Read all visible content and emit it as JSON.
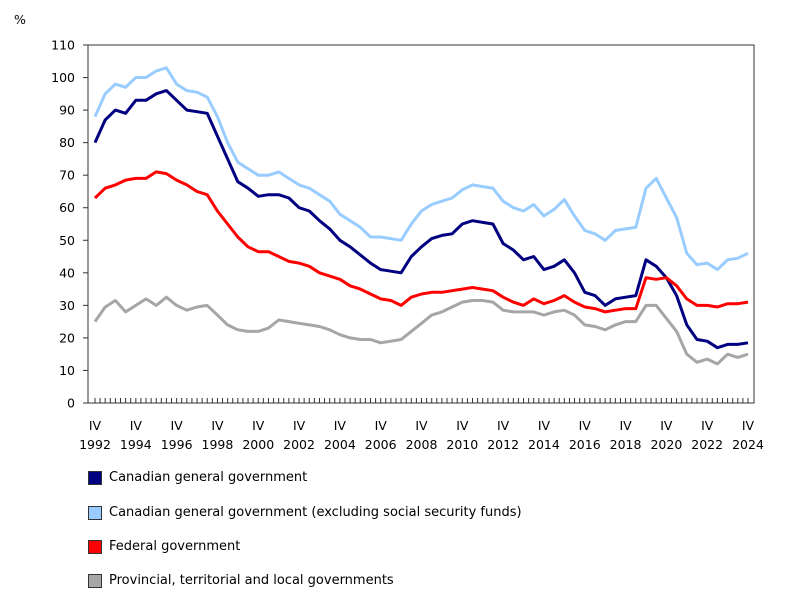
{
  "chart_data": {
    "type": "line",
    "ylabel": "%",
    "ylim": [
      0,
      110
    ],
    "yticks": [
      0,
      10,
      20,
      30,
      40,
      50,
      60,
      70,
      80,
      90,
      100,
      110
    ],
    "x_tick_quarter": "IV",
    "x_tick_years": [
      "1992",
      "1994",
      "1996",
      "1998",
      "2000",
      "2002",
      "2004",
      "2006",
      "2008",
      "2010",
      "2012",
      "2014",
      "2016",
      "2018",
      "2020",
      "2022",
      "2024"
    ],
    "grid": false,
    "legend_position": "bottom",
    "x": [
      "1992Q4",
      "1993Q2",
      "1993Q4",
      "1994Q2",
      "1994Q4",
      "1995Q2",
      "1995Q4",
      "1996Q2",
      "1996Q4",
      "1997Q2",
      "1997Q4",
      "1998Q2",
      "1998Q4",
      "1999Q2",
      "1999Q4",
      "2000Q2",
      "2000Q4",
      "2001Q2",
      "2001Q4",
      "2002Q2",
      "2002Q4",
      "2003Q2",
      "2003Q4",
      "2004Q2",
      "2004Q4",
      "2005Q2",
      "2005Q4",
      "2006Q2",
      "2006Q4",
      "2007Q2",
      "2007Q4",
      "2008Q2",
      "2008Q4",
      "2009Q2",
      "2009Q4",
      "2010Q2",
      "2010Q4",
      "2011Q2",
      "2011Q4",
      "2012Q2",
      "2012Q4",
      "2013Q2",
      "2013Q4",
      "2014Q2",
      "2014Q4",
      "2015Q2",
      "2015Q4",
      "2016Q2",
      "2016Q4",
      "2017Q2",
      "2017Q4",
      "2018Q2",
      "2018Q4",
      "2019Q2",
      "2019Q4",
      "2020Q2",
      "2020Q4",
      "2021Q2",
      "2021Q4",
      "2022Q2",
      "2022Q4",
      "2023Q2",
      "2023Q4",
      "2024Q2",
      "2024Q4"
    ],
    "series": [
      {
        "name": "Canadian general government",
        "color": "#000080",
        "values": [
          80,
          87,
          90,
          89,
          93,
          93,
          95,
          96,
          93,
          90,
          89.5,
          89,
          82,
          75,
          68,
          66,
          63.5,
          64,
          64,
          63,
          60,
          59,
          56,
          53.5,
          50,
          48,
          45.5,
          43,
          41,
          40.5,
          40,
          45,
          48,
          50.5,
          51.5,
          52,
          55,
          56,
          55.5,
          55,
          49,
          47,
          44,
          45,
          41,
          42,
          44,
          40,
          34,
          33,
          30,
          32,
          32.5,
          33,
          44,
          42,
          38.5,
          33,
          24,
          19.5,
          19,
          17,
          18,
          18,
          18.5
        ]
      },
      {
        "name": "Canadian general government (excluding social security funds)",
        "color": "#99ccff",
        "values": [
          88,
          95,
          98,
          97,
          100,
          100,
          102,
          103,
          98,
          96,
          95.5,
          94,
          88,
          80,
          74,
          72,
          70,
          70,
          71,
          69,
          67,
          66,
          64,
          62,
          58,
          56,
          54,
          51,
          51,
          50.5,
          50,
          55,
          59,
          61,
          62,
          63,
          65.5,
          67,
          66.5,
          66,
          62,
          60,
          59,
          61,
          57.5,
          59.5,
          62.5,
          57.5,
          53,
          52,
          50,
          53,
          53.5,
          54,
          66,
          69,
          63,
          57,
          46,
          42.5,
          43,
          41,
          44,
          44.5,
          46
        ]
      },
      {
        "name": "Federal government",
        "color": "#ff0000",
        "values": [
          63,
          66,
          67,
          68.5,
          69,
          69,
          71,
          70.5,
          68.5,
          67,
          65,
          64,
          59,
          55,
          51,
          48,
          46.5,
          46.5,
          45,
          43.5,
          43,
          42,
          40,
          39,
          38,
          36,
          35,
          33.5,
          32,
          31.5,
          30,
          32.5,
          33.5,
          34,
          34,
          34.5,
          35,
          35.5,
          35,
          34.5,
          32.5,
          31,
          30,
          32,
          30.5,
          31.5,
          33,
          31,
          29.5,
          29,
          28,
          28.5,
          29,
          29,
          38.5,
          38,
          38.5,
          36,
          32,
          30,
          30,
          29.5,
          30.5,
          30.5,
          31
        ]
      },
      {
        "name": "Provincial, territorial and local governments",
        "color": "#a6a6a6",
        "values": [
          25,
          29.5,
          31.5,
          28,
          30,
          32,
          30,
          32.5,
          30,
          28.5,
          29.5,
          30,
          27,
          24,
          22.5,
          22,
          22,
          23,
          25.5,
          25,
          24.5,
          24,
          23.5,
          22.5,
          21,
          20,
          19.5,
          19.5,
          18.5,
          19,
          19.5,
          22,
          24.5,
          27,
          28,
          29.5,
          31,
          31.5,
          31.5,
          31,
          28.5,
          28,
          28,
          28,
          27,
          28,
          28.5,
          27,
          24,
          23.5,
          22.5,
          24,
          25,
          25,
          30,
          30,
          26,
          22,
          15,
          12.5,
          13.5,
          12,
          15,
          14,
          15
        ]
      }
    ]
  }
}
